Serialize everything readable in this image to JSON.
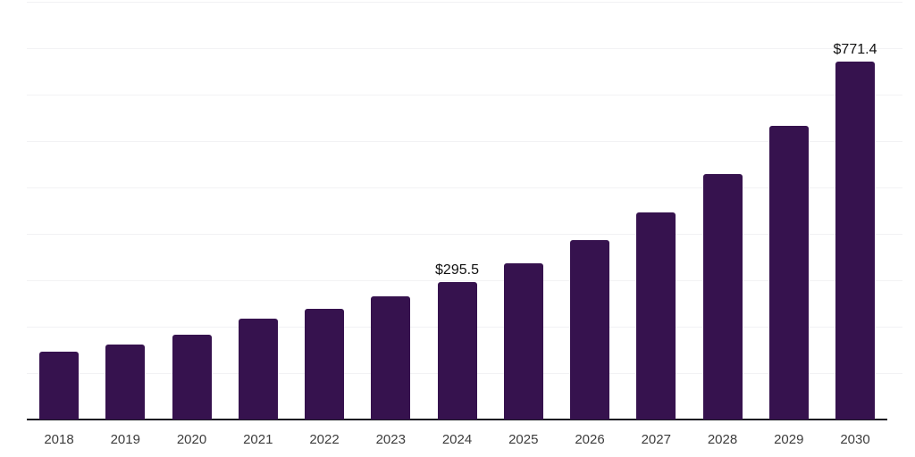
{
  "chart_data": {
    "type": "bar",
    "title": "",
    "xlabel": "",
    "ylabel": "",
    "categories": [
      "2018",
      "2019",
      "2020",
      "2021",
      "2022",
      "2023",
      "2024",
      "2025",
      "2026",
      "2027",
      "2028",
      "2029",
      "2030"
    ],
    "values": [
      146.0,
      161.4,
      182.5,
      217.1,
      238.2,
      265.1,
      295.5,
      336.2,
      386.1,
      445.7,
      528.3,
      632.0,
      771.4
    ],
    "data_labels": [
      null,
      null,
      null,
      null,
      null,
      null,
      "$295.5",
      null,
      null,
      null,
      null,
      null,
      "$771.4"
    ],
    "ylim": [
      0,
      900
    ],
    "gridline_interval": 100,
    "grid": "horizontal-light",
    "legend_position": "none",
    "colors": {
      "bar": "#36124E",
      "axis_line": "#1B1B22",
      "gridline": "#F2F2F4",
      "tick_label": "#3D3D3D",
      "data_label": "#111111",
      "background": "#FFFFFF"
    }
  }
}
